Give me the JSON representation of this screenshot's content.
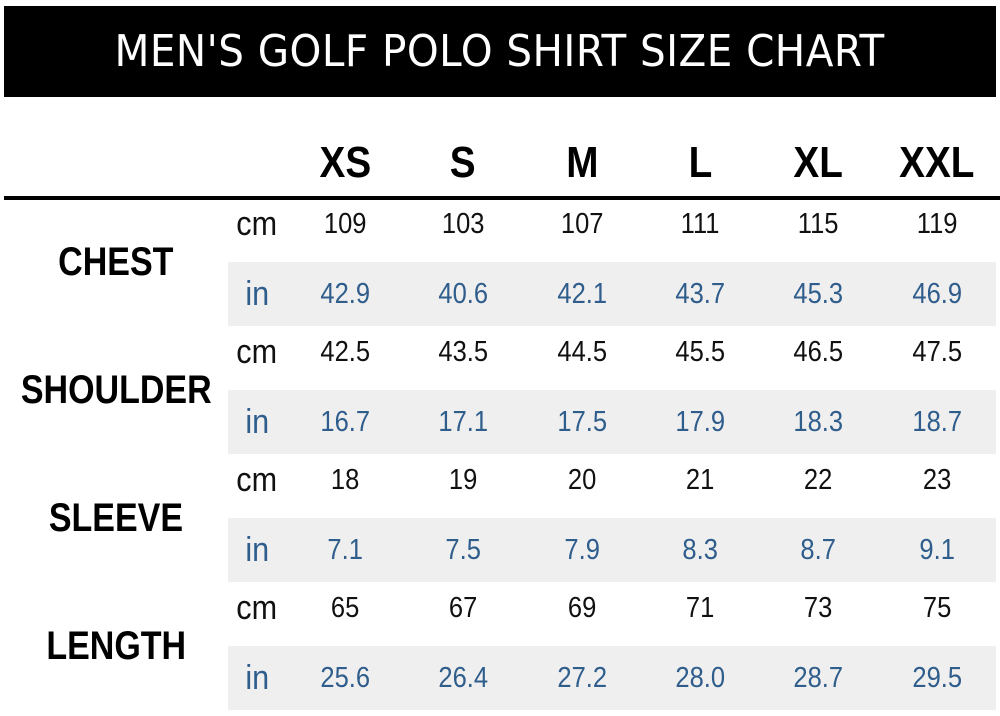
{
  "title": "MEN'S GOLF POLO SHIRT SIZE CHART",
  "sizes": [
    "XS",
    "S",
    "M",
    "L",
    "XL",
    "XXL"
  ],
  "units": {
    "cm": "cm",
    "in": "in"
  },
  "colors": {
    "title_bg": "#000000",
    "title_text": "#ffffff",
    "inch_values": "#2f5d8c",
    "band": "#efefef"
  },
  "measurements": [
    {
      "label": "CHEST",
      "cm": [
        "109",
        "103",
        "107",
        "111",
        "115",
        "119"
      ],
      "in": [
        "42.9",
        "40.6",
        "42.1",
        "43.7",
        "45.3",
        "46.9"
      ]
    },
    {
      "label": "SHOULDER",
      "cm": [
        "42.5",
        "43.5",
        "44.5",
        "45.5",
        "46.5",
        "47.5"
      ],
      "in": [
        "16.7",
        "17.1",
        "17.5",
        "17.9",
        "18.3",
        "18.7"
      ]
    },
    {
      "label": "SLEEVE",
      "cm": [
        "18",
        "19",
        "20",
        "21",
        "22",
        "23"
      ],
      "in": [
        "7.1",
        "7.5",
        "7.9",
        "8.3",
        "8.7",
        "9.1"
      ]
    },
    {
      "label": "LENGTH",
      "cm": [
        "65",
        "67",
        "69",
        "71",
        "73",
        "75"
      ],
      "in": [
        "25.6",
        "26.4",
        "27.2",
        "28.0",
        "28.7",
        "29.5"
      ]
    }
  ]
}
